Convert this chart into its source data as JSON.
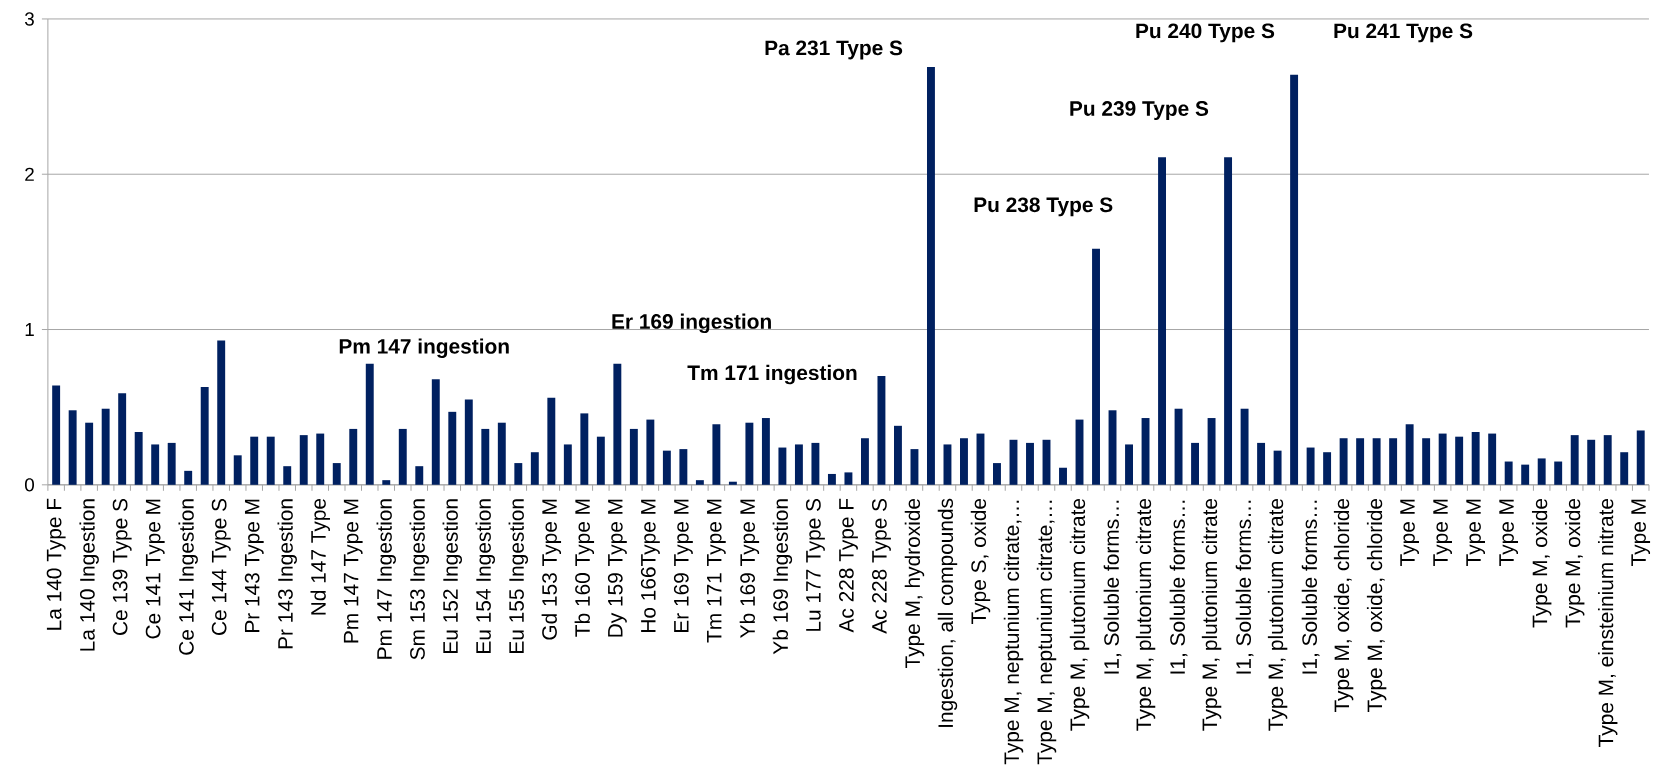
{
  "chart_data": {
    "type": "bar",
    "color": "#002060",
    "ylim": [
      0,
      3
    ],
    "yticks": [
      0,
      1,
      2,
      3
    ],
    "grid": "y",
    "categories": [
      "La 140 Type F",
      null,
      "La 140 Ingestion",
      null,
      "Ce 139 Type S",
      null,
      "Ce 141 Type M",
      null,
      "Ce 141 Ingestion",
      null,
      "Ce 144 Type S",
      null,
      "Pr 143 Type M",
      null,
      "Pr 143  Ingestion",
      null,
      "Nd 147 Type",
      null,
      "Pm 147 Type M",
      null,
      "Pm 147 Ingestion",
      null,
      "Sm 153 Ingestion",
      null,
      "Eu 152 Ingestion",
      null,
      "Eu 154 Ingestion",
      null,
      "Eu 155 Ingestion",
      null,
      "Gd 153 Type M",
      null,
      "Tb 160 Type M",
      null,
      "Dy 159 Type M",
      null,
      "Ho 166Type M",
      null,
      "Er 169 Type M",
      null,
      "Tm 171 Type M",
      null,
      "Yb 169 Type M",
      null,
      "Yb 169 Ingestion",
      null,
      "Lu 177 Type S",
      null,
      "Ac 228 Type F",
      null,
      "Ac 228 Type S",
      null,
      "Type M, hydroxide",
      null,
      "Ingestion, all compounds",
      null,
      "Type S, oxide",
      null,
      "Type M, neptunium citrate,…",
      null,
      "Type M, neptunium citrate,…",
      null,
      "Type M, plutonium citrate",
      null,
      "I1, Soluble forms…",
      null,
      "Type M, plutonium citrate",
      null,
      "I1, Soluble forms…",
      null,
      "Type M, plutonium citrate",
      null,
      "I1, Soluble forms…",
      null,
      "Type M, plutonium citrate",
      null,
      "I1, Soluble forms…",
      null,
      "Type M, oxide, chloride",
      null,
      "Type M, oxide, chloride",
      null,
      "Type M",
      null,
      "Type M",
      null,
      "Type M",
      null,
      "Type M",
      null,
      "Type M, oxide",
      null,
      "Type M, oxide",
      null,
      "Type M, einsteinium nitrate",
      null,
      "Type M"
    ],
    "values": [
      0.64,
      0.48,
      0.4,
      0.49,
      0.59,
      0.34,
      0.26,
      0.27,
      0.09,
      0.63,
      0.93,
      0.19,
      0.31,
      0.31,
      0.12,
      0.32,
      0.33,
      0.14,
      0.36,
      0.78,
      0.03,
      0.36,
      0.12,
      0.68,
      0.47,
      0.55,
      0.36,
      0.4,
      0.14,
      0.21,
      0.56,
      0.26,
      0.46,
      0.31,
      0.78,
      0.36,
      0.42,
      0.22,
      0.23,
      0.03,
      0.39,
      0.02,
      0.4,
      0.43,
      0.24,
      0.26,
      0.27,
      0.07,
      0.08,
      0.3,
      0.7,
      0.38,
      0.23,
      2.69,
      0.26,
      0.3,
      0.33,
      0.14,
      0.29,
      0.27,
      0.29,
      0.11,
      0.42,
      1.52,
      0.48,
      0.26,
      0.43,
      2.11,
      0.49,
      0.27,
      0.43,
      2.11,
      0.49,
      0.27,
      0.22,
      2.64,
      0.24,
      0.21,
      0.3,
      0.3,
      0.3,
      0.3,
      0.39,
      0.3,
      0.33,
      0.31,
      0.34,
      0.33,
      0.15,
      0.13,
      0.17,
      0.15,
      0.32,
      0.29,
      0.32,
      0.21,
      0.35
    ],
    "annotations": [
      "Pm 147 ingestion",
      "Er 169 ingestion",
      "Tm 171 ingestion",
      "Pa 231 Type S",
      "Pu 238 Type S",
      "Pu 239 Type S",
      "Pu 240 Type S",
      "Pu 241 Type S"
    ]
  }
}
